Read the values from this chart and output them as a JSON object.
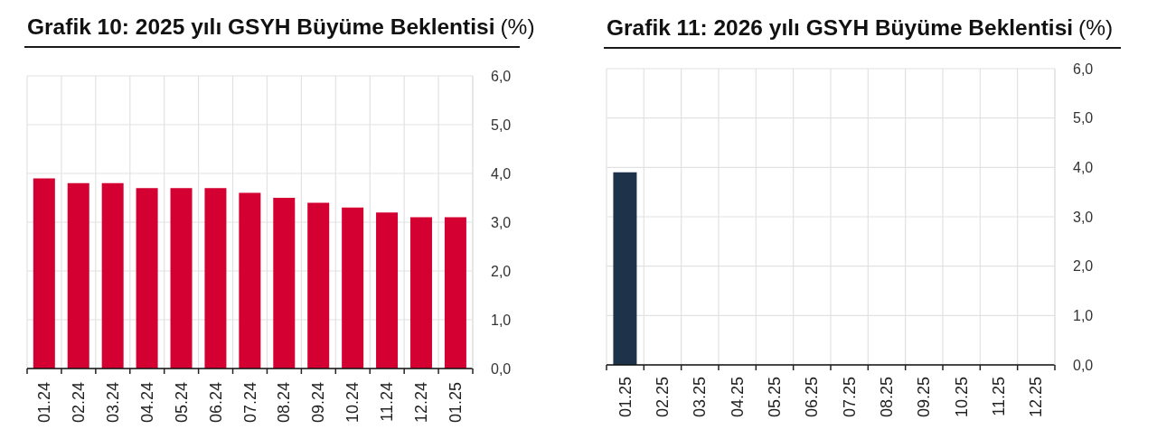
{
  "chart_data": [
    {
      "type": "bar",
      "title": "Grafik 10: 2025 yılı GSYH Büyüme Beklentisi",
      "ylabel": "(%)",
      "categories": [
        "01.24",
        "02.24",
        "03.24",
        "04.24",
        "05.24",
        "06.24",
        "07.24",
        "08.24",
        "09.24",
        "10.24",
        "11.24",
        "12.24",
        "01.25"
      ],
      "values": [
        3.9,
        3.8,
        3.8,
        3.7,
        3.7,
        3.7,
        3.6,
        3.5,
        3.4,
        3.3,
        3.2,
        3.1,
        3.1
      ],
      "color": "#d50032",
      "ylim": [
        0,
        6
      ],
      "yticks": [
        {
          "value": 0,
          "label": "0,0"
        },
        {
          "value": 1,
          "label": "1,0"
        },
        {
          "value": 2,
          "label": "2,0"
        },
        {
          "value": 3,
          "label": "3,0"
        },
        {
          "value": 4,
          "label": "4,0"
        },
        {
          "value": 5,
          "label": "5,0"
        },
        {
          "value": 6,
          "label": "6,0"
        }
      ],
      "grid": true
    },
    {
      "type": "bar",
      "title": "Grafik 11: 2026 yılı GSYH Büyüme Beklentisi",
      "ylabel": "(%)",
      "categories": [
        "01.25",
        "02.25",
        "03.25",
        "04.25",
        "05.25",
        "06.25",
        "07.25",
        "08.25",
        "09.25",
        "10.25",
        "11.25",
        "12.25"
      ],
      "values": [
        3.9,
        null,
        null,
        null,
        null,
        null,
        null,
        null,
        null,
        null,
        null,
        null
      ],
      "color": "#1e3249",
      "ylim": [
        0,
        6
      ],
      "yticks": [
        {
          "value": 0,
          "label": "0,0"
        },
        {
          "value": 1,
          "label": "1,0"
        },
        {
          "value": 2,
          "label": "2,0"
        },
        {
          "value": 3,
          "label": "3,0"
        },
        {
          "value": 4,
          "label": "4,0"
        },
        {
          "value": 5,
          "label": "5,0"
        },
        {
          "value": 6,
          "label": "6,0"
        }
      ],
      "grid": true
    }
  ]
}
